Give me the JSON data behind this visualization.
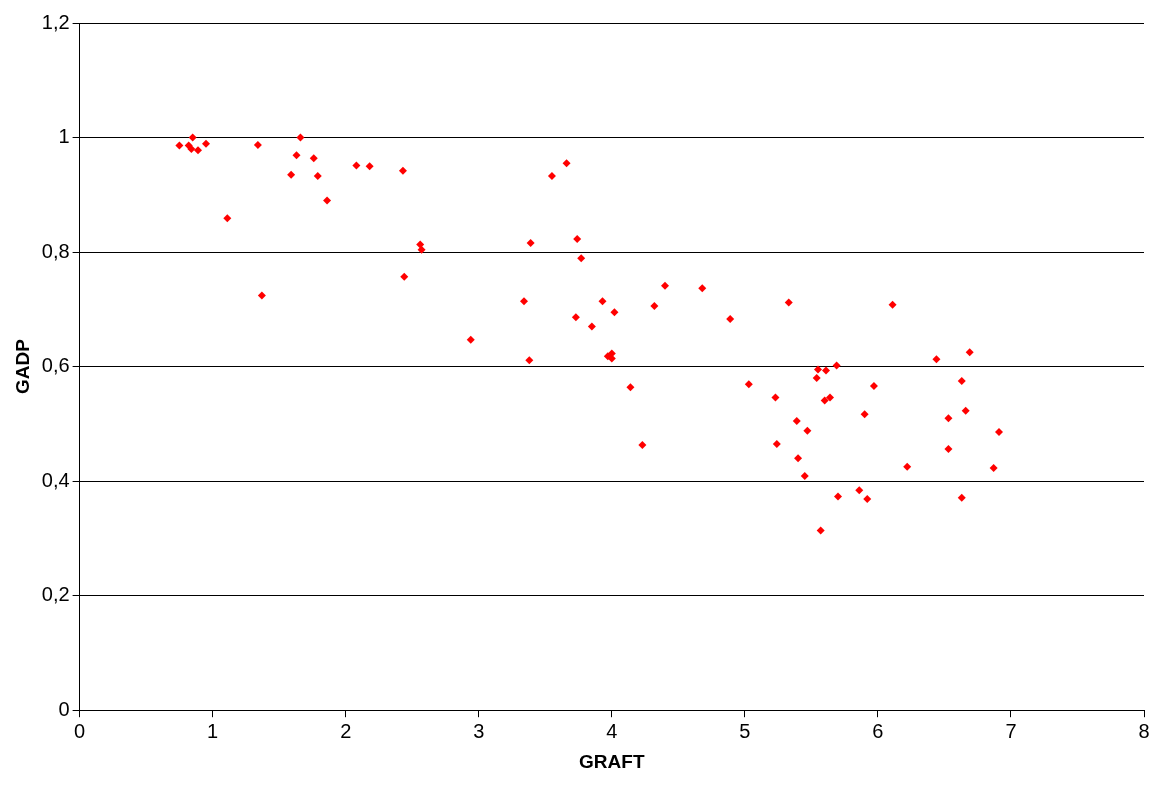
{
  "chart_data": {
    "type": "scatter",
    "xlabel": "GRAFT",
    "ylabel": "GADP",
    "xlim": [
      0,
      8
    ],
    "xticks": [
      0,
      1,
      2,
      3,
      4,
      5,
      6,
      7,
      8
    ],
    "ylim": [
      0,
      1.2
    ],
    "yticks": [
      0,
      {
        "value": 0.2,
        "label": "0,2"
      },
      {
        "value": 0.4,
        "label": "0,4"
      },
      {
        "value": 0.6,
        "label": "0,6"
      },
      {
        "value": 0.8,
        "label": "0,8"
      },
      1,
      {
        "value": 1.2,
        "label": "1,2"
      }
    ],
    "grid": "y",
    "legend": false,
    "marker": "diamond",
    "series": [
      {
        "color": "#ff0000",
        "x": [
          0.75,
          0.82,
          0.85,
          0.84,
          0.89,
          0.95,
          1.11,
          1.34,
          1.37,
          1.59,
          1.63,
          1.66,
          1.76,
          1.79,
          1.86,
          2.08,
          2.18,
          2.43,
          2.44,
          2.56,
          2.57,
          2.94,
          3.34,
          3.38,
          3.39,
          3.55,
          3.66,
          3.73,
          3.74,
          3.77,
          3.85,
          3.93,
          3.97,
          4.0,
          4.0,
          4.02,
          4.14,
          4.23,
          4.32,
          4.4,
          4.68,
          4.89,
          5.03,
          5.23,
          5.24,
          5.33,
          5.39,
          5.4,
          5.45,
          5.47,
          5.55,
          5.54,
          5.57,
          5.6,
          5.61,
          5.64,
          5.69,
          5.7,
          5.86,
          5.9,
          5.92,
          5.97,
          6.11,
          6.22,
          6.44,
          6.53,
          6.53,
          6.63,
          6.63,
          6.66,
          6.69,
          6.87,
          6.91
        ],
        "values": [
          0.986,
          0.986,
          1.0,
          0.98,
          0.978,
          0.989,
          0.859,
          0.987,
          0.724,
          0.935,
          0.969,
          1.0,
          0.964,
          0.933,
          0.89,
          0.951,
          0.95,
          0.942,
          0.757,
          0.813,
          0.804,
          0.647,
          0.714,
          0.611,
          0.816,
          0.933,
          0.955,
          0.686,
          0.823,
          0.789,
          0.67,
          0.714,
          0.618,
          0.623,
          0.614,
          0.695,
          0.564,
          0.463,
          0.706,
          0.741,
          0.737,
          0.683,
          0.569,
          0.546,
          0.465,
          0.712,
          0.505,
          0.44,
          0.409,
          0.488,
          0.595,
          0.58,
          0.314,
          0.541,
          0.593,
          0.546,
          0.602,
          0.373,
          0.384,
          0.517,
          0.369,
          0.566,
          0.708,
          0.425,
          0.613,
          0.51,
          0.456,
          0.575,
          0.371,
          0.523,
          0.625,
          0.423,
          0.486
        ]
      }
    ]
  }
}
